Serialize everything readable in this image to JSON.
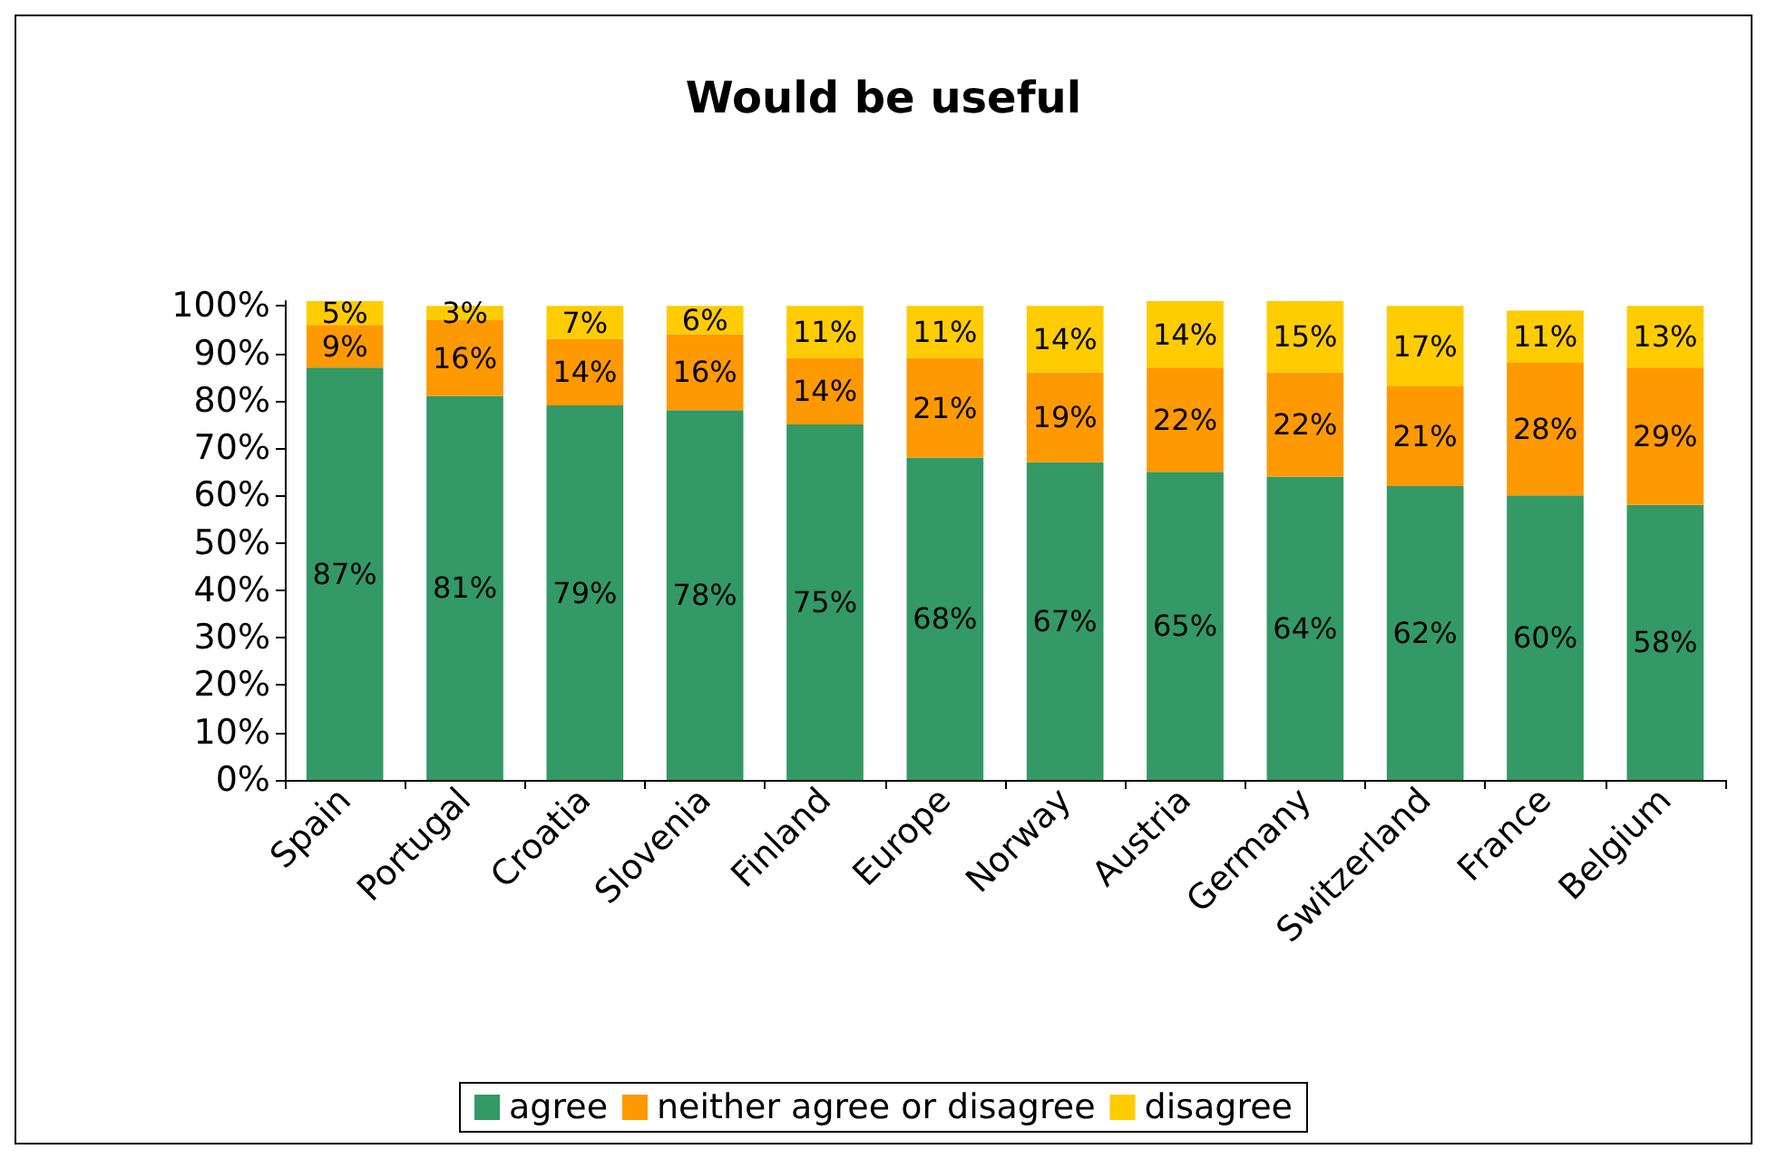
{
  "chart_data": {
    "type": "bar",
    "title": "Would be useful",
    "stacked": true,
    "categories": [
      "Spain",
      "Portugal",
      "Croatia",
      "Slovenia",
      "Finland",
      "Europe",
      "Norway",
      "Austria",
      "Germany",
      "Switzerland",
      "France",
      "Belgium"
    ],
    "series": [
      {
        "name": "agree",
        "color": "#339966",
        "values": [
          87,
          81,
          79,
          78,
          75,
          68,
          67,
          65,
          64,
          62,
          60,
          58
        ],
        "value_labels": [
          "87%",
          "81%",
          "79%",
          "78%",
          "75%",
          "68%",
          "67%",
          "65%",
          "64%",
          "62%",
          "60%",
          "58%"
        ]
      },
      {
        "name": "neither agree or disagree",
        "color": "#ff9900",
        "values": [
          9,
          16,
          14,
          16,
          14,
          21,
          19,
          22,
          22,
          21,
          28,
          29
        ],
        "value_labels": [
          "9%",
          "16%",
          "14%",
          "16%",
          "14%",
          "21%",
          "19%",
          "22%",
          "22%",
          "21%",
          "28%",
          "29%"
        ]
      },
      {
        "name": "disagree",
        "color": "#ffcc00",
        "values": [
          5,
          3,
          7,
          6,
          11,
          11,
          14,
          14,
          15,
          17,
          11,
          13
        ],
        "value_labels": [
          "5%",
          "3%",
          "7%",
          "6%",
          "11%",
          "11%",
          "14%",
          "14%",
          "15%",
          "17%",
          "11%",
          "13%"
        ]
      }
    ],
    "ylim": [
      0,
      101
    ],
    "yticks": [
      {
        "value": 0,
        "label": "0%"
      },
      {
        "value": 10,
        "label": "10%"
      },
      {
        "value": 20,
        "label": "20%"
      },
      {
        "value": 30,
        "label": "30%"
      },
      {
        "value": 40,
        "label": "40%"
      },
      {
        "value": 50,
        "label": "50%"
      },
      {
        "value": 60,
        "label": "60%"
      },
      {
        "value": 70,
        "label": "70%"
      },
      {
        "value": 80,
        "label": "80%"
      },
      {
        "value": 90,
        "label": "90%"
      },
      {
        "value": 100,
        "label": "100%"
      }
    ],
    "grid": false,
    "legend": "bottom"
  }
}
